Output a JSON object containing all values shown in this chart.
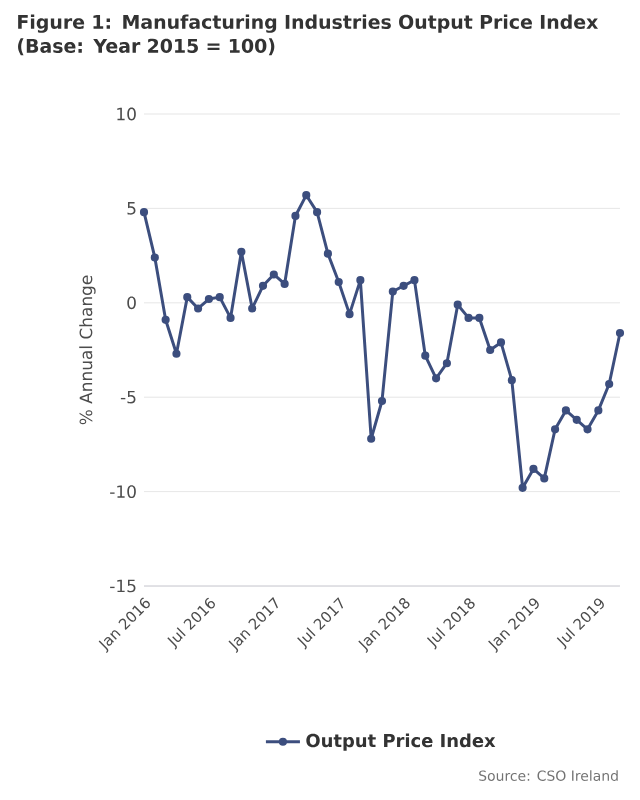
{
  "chart_data": {
    "type": "line",
    "title": "Figure 1: Manufacturing Industries Output Price Index (Base: Year 2015 = 100)",
    "ylabel": "% Annual Change",
    "annotations": [
      "Source: CSO Ireland"
    ],
    "x": [
      "2016-01",
      "2016-02",
      "2016-03",
      "2016-04",
      "2016-05",
      "2016-06",
      "2016-07",
      "2016-08",
      "2016-09",
      "2016-10",
      "2016-11",
      "2016-12",
      "2017-01",
      "2017-02",
      "2017-03",
      "2017-04",
      "2017-05",
      "2017-06",
      "2017-07",
      "2017-08",
      "2017-09",
      "2017-10",
      "2017-11",
      "2017-12",
      "2018-01",
      "2018-02",
      "2018-03",
      "2018-04",
      "2018-05",
      "2018-06",
      "2018-07",
      "2018-08",
      "2018-09",
      "2018-10",
      "2018-11",
      "2018-12",
      "2019-01",
      "2019-02",
      "2019-03",
      "2019-04",
      "2019-05",
      "2019-06",
      "2019-07",
      "2019-08",
      "2019-09"
    ],
    "series": [
      {
        "name": "Output Price Index",
        "color": "#3c4e7e",
        "values": [
          4.8,
          2.4,
          -0.9,
          -2.7,
          0.3,
          -0.3,
          0.2,
          0.3,
          -0.8,
          2.7,
          -0.3,
          0.9,
          1.5,
          1.0,
          4.6,
          5.7,
          4.8,
          2.6,
          1.1,
          -0.6,
          1.2,
          -7.2,
          -5.2,
          0.6,
          0.9,
          1.2,
          -2.8,
          -4.0,
          -3.2,
          -0.1,
          -0.8,
          -0.8,
          -2.5,
          -2.1,
          -4.1,
          -9.8,
          -8.8,
          -9.3,
          -6.7,
          -5.7,
          -6.2,
          -6.7,
          -5.7,
          -4.3,
          -1.6
        ]
      }
    ],
    "xlim": [
      "2016-01",
      "2019-09"
    ],
    "xticks": [
      {
        "value": "2016-01",
        "label": "Jan 2016"
      },
      {
        "value": "2016-07",
        "label": "Jul 2016"
      },
      {
        "value": "2017-01",
        "label": "Jan 2017"
      },
      {
        "value": "2017-07",
        "label": "Jul 2017"
      },
      {
        "value": "2018-01",
        "label": "Jan 2018"
      },
      {
        "value": "2018-07",
        "label": "Jul 2018"
      },
      {
        "value": "2019-01",
        "label": "Jan 2019"
      },
      {
        "value": "2019-07",
        "label": "Jul 2019"
      }
    ],
    "ylim": [
      -15,
      10
    ],
    "yticks": [
      -15,
      -10,
      -5,
      0,
      5,
      10
    ],
    "grid": "y",
    "legend": "bottom",
    "marker": "circle",
    "line_style": "solid"
  }
}
